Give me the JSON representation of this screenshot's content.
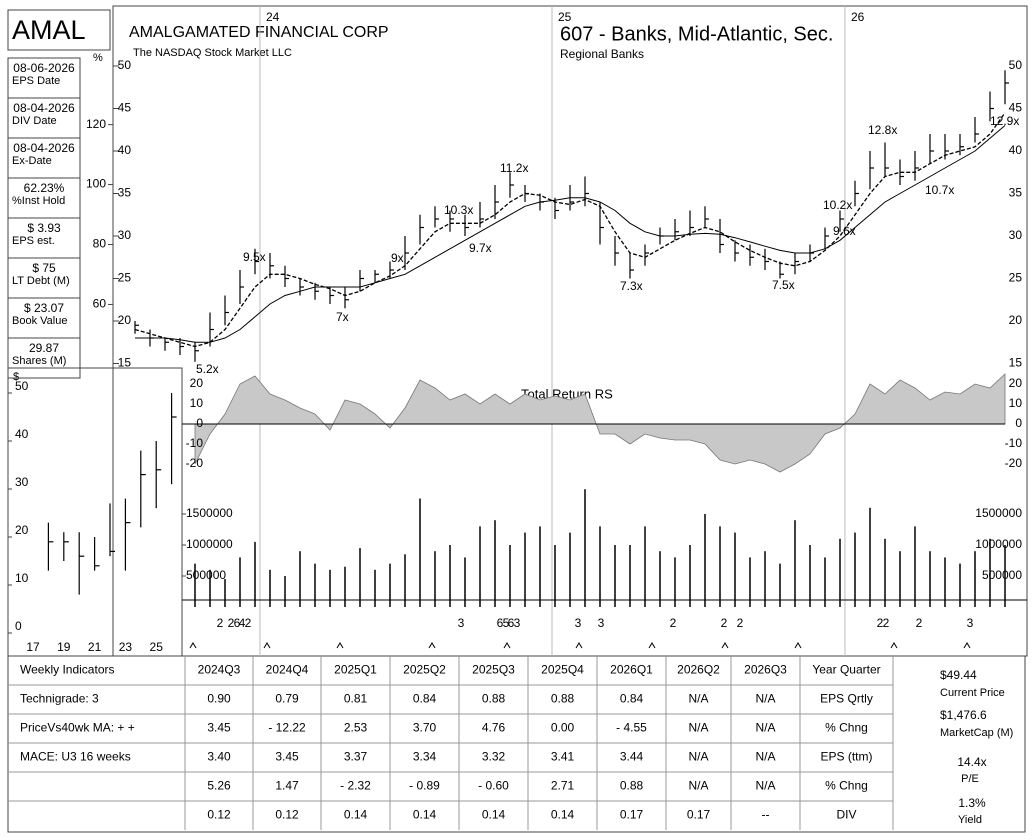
{
  "header": {
    "symbol": "AMAL",
    "company": "AMALGAMATED FINANCIAL CORP",
    "exchange": "The NASDAQ Stock Market LLC",
    "industry": "607 - Banks, Mid-Atlantic, Sec.",
    "sector": "Regional Banks"
  },
  "sidebar": [
    {
      "value": "08-06-2026",
      "label": "EPS Date"
    },
    {
      "value": "08-04-2026",
      "label": "DIV Date"
    },
    {
      "value": "08-04-2026",
      "label": "Ex-Date"
    },
    {
      "value": "62.23%",
      "label": "%Inst Hold"
    },
    {
      "value": "$ 3.93",
      "label": "EPS est."
    },
    {
      "value": "$ 75",
      "label": "LT Debt (M)"
    },
    {
      "value": "$ 23.07",
      "label": "Book Value"
    },
    {
      "value": "29.87",
      "label": "Shares (M)"
    }
  ],
  "chart_data": [
    {
      "type": "ohlc",
      "color": "#000000",
      "xlim": [
        0,
        58
      ],
      "xticks": [
        {
          "value": 8.33,
          "label": "24"
        },
        {
          "value": 27.8,
          "label": "25"
        },
        {
          "value": 47.33,
          "label": "26"
        }
      ],
      "ylim": [
        15,
        56.5
      ],
      "yticks": [
        15,
        20,
        25,
        30,
        35,
        40,
        45,
        50
      ],
      "y2label": "%",
      "y2lim": [
        40.3,
        158
      ],
      "y2ticks": [
        60,
        80,
        100,
        120
      ],
      "high": [
        20,
        19,
        18,
        18,
        17.5,
        21,
        23,
        26,
        28.5,
        28,
        26.5,
        25,
        24.5,
        24,
        24,
        26,
        26,
        27,
        30,
        32.5,
        33.5,
        33,
        32.5,
        34,
        36,
        37.5,
        36,
        35,
        34.5,
        36,
        37,
        34,
        30,
        28,
        29,
        31,
        32,
        33,
        33.5,
        32,
        29.5,
        29,
        28.5,
        27,
        28,
        29,
        31,
        33,
        36.5,
        40,
        41,
        39,
        40,
        42,
        42,
        42,
        44,
        47,
        49.5
      ],
      "low": [
        18.5,
        17,
        16.5,
        16,
        15.2,
        17,
        19.5,
        22,
        25.5,
        25,
        24,
        23,
        22.5,
        22,
        21.5,
        23.5,
        24.5,
        25,
        26,
        29,
        31,
        30.5,
        30,
        31,
        32,
        34.5,
        34,
        33,
        32,
        33,
        33.5,
        29,
        26.5,
        25,
        26.5,
        29,
        29.5,
        30,
        31,
        28,
        27,
        26.5,
        26,
        25,
        25.5,
        27,
        28.5,
        30.5,
        33.5,
        35.5,
        37,
        36,
        36.5,
        38.5,
        39,
        39.5,
        41,
        43.5,
        45.5
      ],
      "close": [
        19.5,
        18,
        17.5,
        17,
        16.5,
        19,
        21,
        24,
        27,
        26.5,
        25,
        24,
        23.5,
        23,
        22.5,
        25,
        25.5,
        26,
        28,
        31,
        32,
        32,
        31,
        32,
        34,
        36,
        35,
        34,
        33,
        34,
        35,
        31,
        28,
        26,
        28,
        30,
        30.5,
        31,
        32,
        29,
        28,
        27.5,
        27,
        25.5,
        27,
        28,
        30,
        32,
        35,
        38,
        38,
        37,
        38,
        40,
        40,
        40.5,
        42,
        45,
        48
      ],
      "ma10": [
        19,
        18.5,
        18,
        17.5,
        17,
        17.5,
        19,
        21.5,
        24,
        25.5,
        25.5,
        25,
        24.3,
        23.8,
        23,
        23.5,
        24.5,
        25.3,
        26.5,
        28.5,
        30.5,
        31.5,
        31.5,
        31.5,
        32.5,
        34,
        35,
        34.8,
        34,
        33.7,
        34.3,
        33.5,
        30.5,
        28,
        27.5,
        28.5,
        29.5,
        30.3,
        31,
        30.5,
        29.3,
        28.3,
        27.5,
        26.8,
        26.5,
        27,
        28.3,
        30,
        32.5,
        35,
        37,
        37.5,
        37.5,
        38.5,
        39.5,
        40,
        40.5,
        42,
        44.5
      ],
      "ma40": [
        18,
        18,
        18,
        17.8,
        17.5,
        17.5,
        18,
        19,
        20.5,
        22,
        23,
        23.5,
        24,
        24,
        24,
        24,
        24.5,
        25,
        25.5,
        26.5,
        27.5,
        28.5,
        29.5,
        30.5,
        31.5,
        32.5,
        33.5,
        34,
        34.2,
        34.5,
        34.5,
        34,
        33,
        31.5,
        30.5,
        30,
        30,
        30.2,
        30.3,
        30.2,
        29.8,
        29.3,
        28.8,
        28.3,
        28,
        28,
        28.5,
        29.5,
        31,
        32.5,
        34,
        35,
        36,
        37,
        38,
        39,
        40,
        41.5,
        43
      ],
      "annotations": [
        "9.5x",
        "7x",
        "9x",
        "10.3x",
        "9.7x",
        "11.2x",
        "7.3x",
        "7.5x",
        "10.2x",
        "9.6x",
        "12.8x",
        "10.7x",
        "12.9x",
        "5.2x"
      ]
    },
    {
      "type": "area",
      "title": "Total Return RS",
      "color": "#c8c8c8",
      "xlim": [
        0,
        58
      ],
      "ylim": [
        -27,
        25
      ],
      "yticks": [
        -20,
        -10,
        0,
        10,
        20
      ],
      "values": [
        null,
        null,
        null,
        null,
        -20,
        -5,
        5,
        20,
        24,
        15,
        12,
        8,
        5,
        -3,
        12,
        10,
        5,
        -2,
        8,
        22,
        18,
        12,
        15,
        10,
        15,
        10,
        15,
        12,
        14,
        12,
        15,
        -5,
        -5,
        -10,
        -5,
        -7,
        -8,
        -8,
        -10,
        -18,
        -20,
        -18,
        -20,
        -24,
        -20,
        -15,
        -5,
        -2,
        5,
        20,
        15,
        22,
        18,
        12,
        16,
        15,
        20,
        18,
        25
      ]
    },
    {
      "type": "bar",
      "color": "#000000",
      "xlim": [
        0,
        58
      ],
      "ylim": [
        0,
        2000000
      ],
      "yticks": [
        500000,
        1000000,
        1500000
      ],
      "values": [
        null,
        null,
        null,
        null,
        700000,
        600000,
        450000,
        800000,
        1050000,
        600000,
        500000,
        900000,
        700000,
        600000,
        650000,
        950000,
        600000,
        700000,
        850000,
        1750000,
        900000,
        1000000,
        800000,
        1300000,
        1400000,
        1000000,
        1200000,
        1300000,
        1000000,
        1200000,
        1900000,
        1300000,
        1000000,
        1000000,
        1300000,
        900000,
        800000,
        1000000,
        1500000,
        1300000,
        1200000,
        800000,
        900000,
        700000,
        1400000,
        1000000,
        800000,
        1100000,
        1200000,
        1600000,
        1100000,
        900000,
        1300000,
        900000,
        800000,
        700000,
        900000,
        1100000,
        1000000
      ],
      "events": [
        "2",
        "2",
        "6",
        "4",
        "2",
        "3",
        "6",
        "5",
        "6",
        "3",
        "3",
        "3",
        "2",
        "2",
        "2",
        "2",
        "2",
        "2",
        "3"
      ]
    },
    {
      "type": "ohlc",
      "color": "#000000",
      "ylabel": "$",
      "categories": [
        "17",
        null,
        "19",
        null,
        "21",
        null,
        "23",
        null,
        "25",
        null
      ],
      "ylim": [
        -1,
        55
      ],
      "yticks": [
        0,
        10,
        20,
        30,
        40,
        50
      ],
      "high": [
        null,
        23,
        21,
        21,
        20,
        27,
        28,
        38,
        40,
        50
      ],
      "low": [
        null,
        13,
        15,
        8,
        13,
        16,
        13,
        22,
        26,
        31
      ],
      "close": [
        null,
        19,
        19,
        16,
        14,
        17,
        23,
        33,
        34,
        45
      ]
    }
  ],
  "table": {
    "header": [
      "Weekly Indicators",
      "2024Q3",
      "2024Q4",
      "2025Q1",
      "2025Q2",
      "2025Q3",
      "2025Q4",
      "2026Q1",
      "2026Q2",
      "2026Q3",
      "Year Quarter"
    ],
    "rows": [
      [
        "Technigrade: 3",
        "0.90",
        "0.79",
        "0.81",
        "0.84",
        "0.88",
        "0.88",
        "0.84",
        "N/A",
        "N/A",
        "EPS Qrtly"
      ],
      [
        "PriceVs40wk MA:  + +",
        "3.45",
        "- 12.22",
        "2.53",
        "3.70",
        "4.76",
        "0.00",
        "- 4.55",
        "N/A",
        "N/A",
        "% Chng"
      ],
      [
        "MACE: U3  16 weeks",
        "3.40",
        "3.45",
        "3.37",
        "3.34",
        "3.32",
        "3.41",
        "3.44",
        "N/A",
        "N/A",
        "EPS (ttm)"
      ],
      [
        null,
        "5.26",
        "1.47",
        "- 2.32",
        "- 0.89",
        "- 0.60",
        "2.71",
        "0.88",
        "N/A",
        "N/A",
        "% Chng"
      ],
      [
        null,
        "0.12",
        "0.12",
        "0.14",
        "0.14",
        "0.14",
        "0.14",
        "0.17",
        "0.17",
        "--",
        "DIV"
      ]
    ]
  },
  "summary": [
    {
      "value": "$49.44",
      "label": "Current Price"
    },
    {
      "value": "$1,476.6",
      "label": "MarketCap (M)"
    },
    {
      "value": "14.4x",
      "label": "P/E"
    },
    {
      "value": "1.3%",
      "label": "Yield"
    }
  ]
}
